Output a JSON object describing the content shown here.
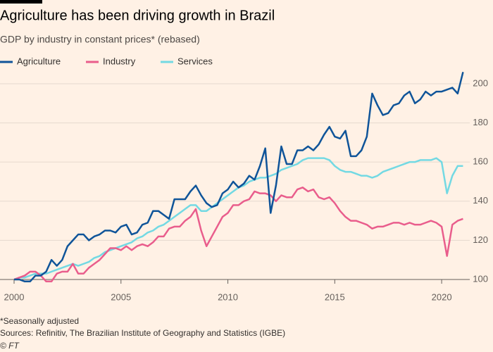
{
  "chart_data": {
    "type": "line",
    "title": "Agriculture has been driving growth in Brazil",
    "subtitle": "GDP by industry in constant prices* (rebased)",
    "footnote": "*Seasonally adjusted",
    "source": "Sources: Refinitiv, The Brazilian Institute of Geography and Statistics (IGBE)",
    "credit": "© FT",
    "legend": "top-left",
    "grid": true,
    "xlim": [
      2000,
      2021.15
    ],
    "xticks": [
      2000,
      2005,
      2010,
      2015,
      2020
    ],
    "ylim": [
      100,
      207
    ],
    "yticks": [
      100,
      120,
      140,
      160,
      180,
      200
    ],
    "x": [
      2000,
      2000.25,
      2000.5,
      2000.75,
      2001,
      2001.25,
      2001.5,
      2001.75,
      2002,
      2002.25,
      2002.5,
      2002.75,
      2003,
      2003.25,
      2003.5,
      2003.75,
      2004,
      2004.25,
      2004.5,
      2004.75,
      2005,
      2005.25,
      2005.5,
      2005.75,
      2006,
      2006.25,
      2006.5,
      2006.75,
      2007,
      2007.25,
      2007.5,
      2007.75,
      2008,
      2008.25,
      2008.5,
      2008.75,
      2009,
      2009.25,
      2009.5,
      2009.75,
      2010,
      2010.25,
      2010.5,
      2010.75,
      2011,
      2011.25,
      2011.5,
      2011.75,
      2012,
      2012.25,
      2012.5,
      2012.75,
      2013,
      2013.25,
      2013.5,
      2013.75,
      2014,
      2014.25,
      2014.5,
      2014.75,
      2015,
      2015.25,
      2015.5,
      2015.75,
      2016,
      2016.25,
      2016.5,
      2016.75,
      2017,
      2017.25,
      2017.5,
      2017.75,
      2018,
      2018.25,
      2018.5,
      2018.75,
      2019,
      2019.25,
      2019.5,
      2019.75,
      2020,
      2020.25,
      2020.5,
      2020.75,
      2021
    ],
    "series": [
      {
        "name": "Agriculture",
        "color": "#0f5499",
        "values": [
          100,
          100,
          99,
          99,
          102,
          102,
          104,
          110,
          107,
          110,
          117,
          120,
          123,
          123,
          120,
          122,
          123,
          125,
          125,
          124,
          127,
          128,
          123,
          124,
          128,
          129,
          135,
          135,
          133,
          131,
          141,
          141,
          141,
          145,
          148,
          143,
          139,
          137,
          138,
          144,
          146,
          150,
          147,
          149,
          153,
          151,
          158,
          167,
          134,
          148,
          168,
          159,
          159,
          166,
          166,
          168,
          166,
          169,
          174,
          178,
          173,
          172,
          176,
          163,
          163,
          166,
          173,
          195,
          189,
          184,
          185,
          189,
          190,
          194,
          196,
          190,
          192,
          196,
          194,
          196,
          196,
          197,
          198,
          195,
          206
        ]
      },
      {
        "name": "Industry",
        "color": "#e95d8c",
        "values": [
          100,
          101,
          102,
          104,
          104,
          102,
          99,
          99,
          103,
          104,
          104,
          108,
          103,
          103,
          106,
          108,
          110,
          113,
          116,
          116,
          115,
          117,
          115,
          117,
          118,
          117,
          119,
          122,
          122,
          126,
          127,
          127,
          130,
          132,
          136,
          125,
          117,
          122,
          127,
          132,
          134,
          138,
          138,
          140,
          141,
          145,
          144,
          144,
          143,
          140,
          143,
          142,
          142,
          146,
          147,
          145,
          146,
          142,
          141,
          142,
          139,
          135,
          132,
          130,
          130,
          129,
          128,
          126,
          127,
          127,
          128,
          129,
          129,
          128,
          129,
          128,
          128,
          129,
          130,
          129,
          127,
          112,
          128,
          130,
          131
        ]
      },
      {
        "name": "Services",
        "color": "#73d9e3",
        "values": [
          100,
          101,
          101,
          102,
          103,
          103,
          103,
          104,
          105,
          106,
          107,
          108,
          107,
          108,
          109,
          111,
          112,
          114,
          115,
          116,
          117,
          118,
          119,
          121,
          122,
          124,
          125,
          127,
          128,
          130,
          132,
          134,
          136,
          138,
          138,
          135,
          135,
          137,
          139,
          141,
          143,
          145,
          147,
          148,
          150,
          151,
          152,
          152,
          153,
          154,
          156,
          157,
          158,
          159,
          161,
          162,
          162,
          162,
          162,
          161,
          158,
          156,
          155,
          155,
          154,
          153,
          153,
          152,
          153,
          155,
          156,
          157,
          158,
          159,
          160,
          160,
          161,
          161,
          161,
          162,
          160,
          144,
          153,
          158,
          158
        ]
      }
    ]
  }
}
